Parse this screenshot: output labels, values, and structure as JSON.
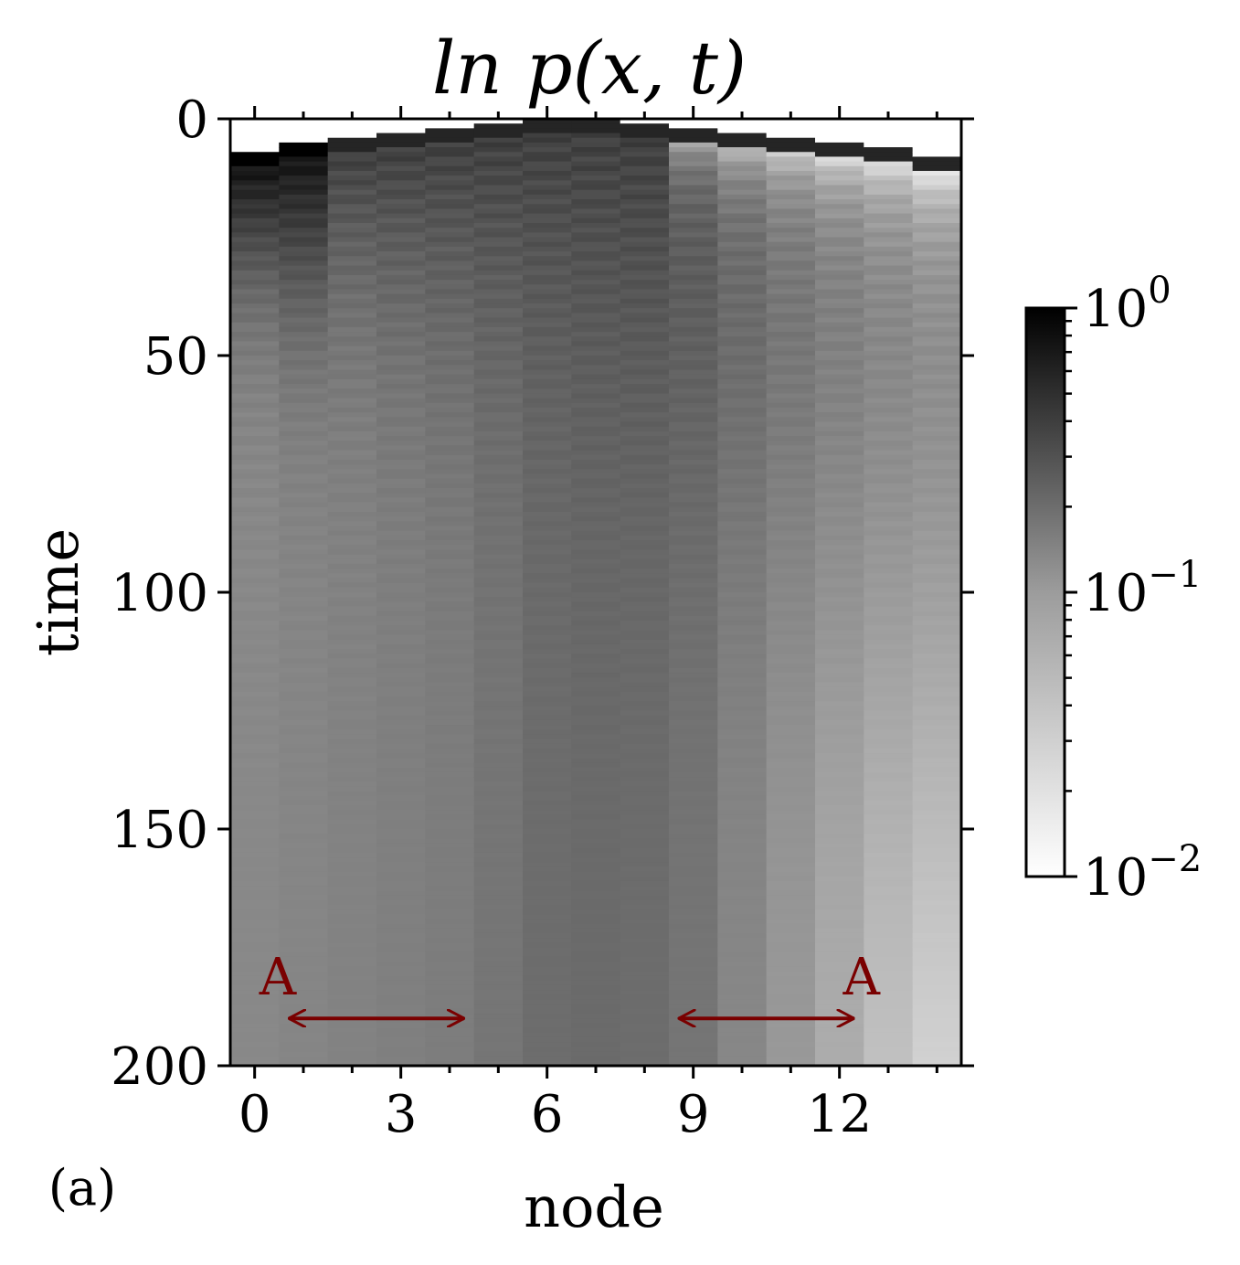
{
  "chart_data": {
    "type": "heatmap",
    "title": "ln p(x, t)",
    "xlabel": "node",
    "ylabel": "time",
    "panel_label": "(a)",
    "x_categories": [
      0,
      1,
      2,
      3,
      4,
      5,
      6,
      7,
      8,
      9,
      10,
      11,
      12,
      13,
      14
    ],
    "x_ticks": [
      0,
      3,
      6,
      9,
      12
    ],
    "y_ticks": [
      0,
      50,
      100,
      150,
      200
    ],
    "ylim": [
      200,
      0
    ],
    "y_inverted": true,
    "colorscale": "greys",
    "color_scale_type": "log",
    "colorbar": {
      "min": 0.01,
      "max": 1,
      "tick_labels": [
        "10^0",
        "10^-1",
        "10^-2"
      ],
      "tick_values": [
        1,
        0.1,
        0.01
      ]
    },
    "onset_time_per_node": [
      7,
      5,
      4,
      3,
      2,
      1,
      0,
      0,
      1,
      2,
      3,
      4,
      5,
      6,
      8
    ],
    "late_time_p_per_node": [
      0.085,
      0.09,
      0.095,
      0.1,
      0.105,
      0.12,
      0.14,
      0.145,
      0.14,
      0.12,
      0.085,
      0.06,
      0.04,
      0.025,
      0.015
    ],
    "annotations": [
      {
        "text": "A",
        "arrow_from_node": 0.7,
        "arrow_to_node": 4.3,
        "time": 190
      },
      {
        "text": "A",
        "arrow_from_node": 8.7,
        "arrow_to_node": 12.3,
        "time": 190
      }
    ],
    "annotation_color": "#7a0000",
    "grid": false
  }
}
